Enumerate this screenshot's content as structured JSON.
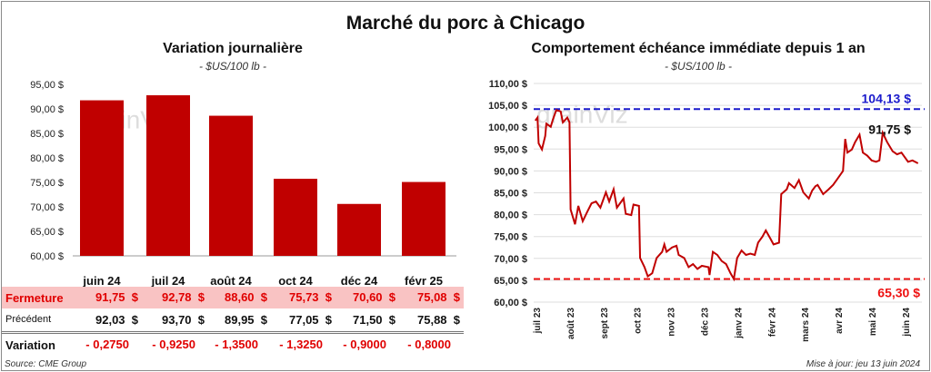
{
  "title": "Marché du porc à Chicago",
  "left": {
    "title": "Variation journalière",
    "unit": "- $US/100 lb -"
  },
  "right": {
    "title": "Comportement  échéance immédiate depuis 1 an",
    "unit": "- $US/100 lb -"
  },
  "watermark": "grainViz",
  "table": {
    "columns": [
      "juin 24",
      "juil 24",
      "août 24",
      "oct 24",
      "déc 24",
      "févr 25"
    ],
    "rows": [
      {
        "label": "Fermeture",
        "values": [
          "91,75  $",
          "92,78  $",
          "88,60  $",
          "75,73  $",
          "70,60  $",
          "75,08  $"
        ]
      },
      {
        "label": "Précédent",
        "values": [
          "92,03  $",
          "93,70  $",
          "89,95  $",
          "77,05  $",
          "71,50  $",
          "75,88  $"
        ]
      },
      {
        "label": "Variation",
        "values": [
          "- 0,2750",
          "- 0,9250",
          "- 1,3500",
          "- 1,3250",
          "- 0,9000",
          "- 0,8000"
        ]
      }
    ]
  },
  "source": "Source: CME Group",
  "updated": "Mise à jour: jeu 13 juin 2024",
  "colors": {
    "bar": "#c00000",
    "line": "#c00000",
    "high": "#1a1acc",
    "low": "#ee1111",
    "close_row": "#f9c3c3"
  },
  "chart_data": [
    {
      "type": "bar",
      "categories": [
        "juin 24",
        "juil 24",
        "août 24",
        "oct 24",
        "déc 24",
        "févr 25"
      ],
      "values": [
        91.75,
        92.78,
        88.6,
        75.73,
        70.6,
        75.08
      ],
      "ylim": [
        60,
        95
      ],
      "yticks": [
        "60,00 $",
        "65,00 $",
        "70,00 $",
        "75,00 $",
        "80,00 $",
        "85,00 $",
        "90,00 $",
        "95,00 $"
      ],
      "grid": false
    },
    {
      "type": "line",
      "ylim": [
        60,
        110
      ],
      "yticks": [
        "60,00 $",
        "65,00 $",
        "70,00 $",
        "75,00 $",
        "80,00 $",
        "85,00 $",
        "90,00 $",
        "95,00 $",
        "100,00 $",
        "105,00 $",
        "110,00 $"
      ],
      "xticks": [
        "juil 23",
        "août 23",
        "sept 23",
        "oct 23",
        "nov 23",
        "déc 23",
        "janv 24",
        "févr 24",
        "mars 24",
        "avr 24",
        "mai 24",
        "juin 24"
      ],
      "grid": true,
      "annotations": {
        "high": "104,13 $",
        "last": "91,75 $",
        "low": "65,30 $"
      },
      "high": 104.13,
      "low": 65.3,
      "last": 91.75,
      "series": [
        [
          "2023-06-30",
          101.5
        ],
        [
          "2023-07-02",
          102.2
        ],
        [
          "2023-07-03",
          96.3
        ],
        [
          "2023-07-06",
          94.9
        ],
        [
          "2023-07-09",
          98
        ],
        [
          "2023-07-10",
          100.8
        ],
        [
          "2023-07-14",
          100.1
        ],
        [
          "2023-07-16",
          101.8
        ],
        [
          "2023-07-19",
          103.9
        ],
        [
          "2023-07-23",
          103.6
        ],
        [
          "2023-07-25",
          101.1
        ],
        [
          "2023-07-29",
          102.2
        ],
        [
          "2023-07-31",
          101.1
        ],
        [
          "2023-08-01",
          81.2
        ],
        [
          "2023-08-05",
          77.8
        ],
        [
          "2023-08-08",
          82
        ],
        [
          "2023-08-12",
          78.5
        ],
        [
          "2023-08-16",
          80.6
        ],
        [
          "2023-08-20",
          82.6
        ],
        [
          "2023-08-24",
          83
        ],
        [
          "2023-08-28",
          81.6
        ],
        [
          "2023-09-02",
          85.1
        ],
        [
          "2023-09-05",
          83
        ],
        [
          "2023-09-09",
          85.8
        ],
        [
          "2023-09-12",
          81.6
        ],
        [
          "2023-09-18",
          83.7
        ],
        [
          "2023-09-20",
          80.2
        ],
        [
          "2023-09-25",
          79.9
        ],
        [
          "2023-09-27",
          82.3
        ],
        [
          "2023-10-02",
          82
        ],
        [
          "2023-10-03",
          70.1
        ],
        [
          "2023-10-07",
          68
        ],
        [
          "2023-10-10",
          65.9
        ],
        [
          "2023-10-14",
          66.6
        ],
        [
          "2023-10-18",
          70.1
        ],
        [
          "2023-10-23",
          71.5
        ],
        [
          "2023-10-25",
          73.2
        ],
        [
          "2023-10-27",
          71.5
        ],
        [
          "2023-11-01",
          72.5
        ],
        [
          "2023-11-05",
          72.9
        ],
        [
          "2023-11-07",
          70.8
        ],
        [
          "2023-11-12",
          70.1
        ],
        [
          "2023-11-16",
          68
        ],
        [
          "2023-11-20",
          68.7
        ],
        [
          "2023-11-24",
          67.6
        ],
        [
          "2023-11-28",
          68.3
        ],
        [
          "2023-12-04",
          68
        ],
        [
          "2023-12-05",
          66.2
        ],
        [
          "2023-12-08",
          71.5
        ],
        [
          "2023-12-12",
          70.8
        ],
        [
          "2023-12-16",
          69.4
        ],
        [
          "2023-12-20",
          68.7
        ],
        [
          "2023-12-24",
          66.6
        ],
        [
          "2023-12-27",
          65.3
        ],
        [
          "2023-12-30",
          70.1
        ],
        [
          "2024-01-03",
          71.8
        ],
        [
          "2024-01-07",
          70.8
        ],
        [
          "2024-01-11",
          71.1
        ],
        [
          "2024-01-15",
          70.8
        ],
        [
          "2024-01-18",
          73.6
        ],
        [
          "2024-01-22",
          75
        ],
        [
          "2024-01-25",
          76.4
        ],
        [
          "2024-01-29",
          74.6
        ],
        [
          "2024-02-01",
          73.2
        ],
        [
          "2024-02-06",
          73.6
        ],
        [
          "2024-02-08",
          84.7
        ],
        [
          "2024-02-13",
          85.8
        ],
        [
          "2024-02-15",
          87.2
        ],
        [
          "2024-02-20",
          86.1
        ],
        [
          "2024-02-24",
          87.9
        ],
        [
          "2024-02-28",
          85.1
        ],
        [
          "2024-03-04",
          83.7
        ],
        [
          "2024-03-07",
          85.5
        ],
        [
          "2024-03-10",
          86.5
        ],
        [
          "2024-03-12",
          86.8
        ],
        [
          "2024-03-17",
          84.7
        ],
        [
          "2024-03-22",
          85.8
        ],
        [
          "2024-03-26",
          86.8
        ],
        [
          "2024-03-30",
          88.2
        ],
        [
          "2024-04-04",
          90
        ],
        [
          "2024-04-06",
          97.3
        ],
        [
          "2024-04-08",
          94.2
        ],
        [
          "2024-04-12",
          94.9
        ],
        [
          "2024-04-15",
          96.6
        ],
        [
          "2024-04-19",
          98.3
        ],
        [
          "2024-04-22",
          94.2
        ],
        [
          "2024-04-26",
          93.5
        ],
        [
          "2024-04-30",
          92.4
        ],
        [
          "2024-05-04",
          92.1
        ],
        [
          "2024-05-07",
          92.4
        ],
        [
          "2024-05-10",
          98.7
        ],
        [
          "2024-05-14",
          96.6
        ],
        [
          "2024-05-19",
          94.5
        ],
        [
          "2024-05-23",
          93.8
        ],
        [
          "2024-05-27",
          94.2
        ],
        [
          "2024-06-02",
          92.1
        ],
        [
          "2024-06-06",
          92.4
        ],
        [
          "2024-06-11",
          91.75
        ]
      ]
    }
  ]
}
